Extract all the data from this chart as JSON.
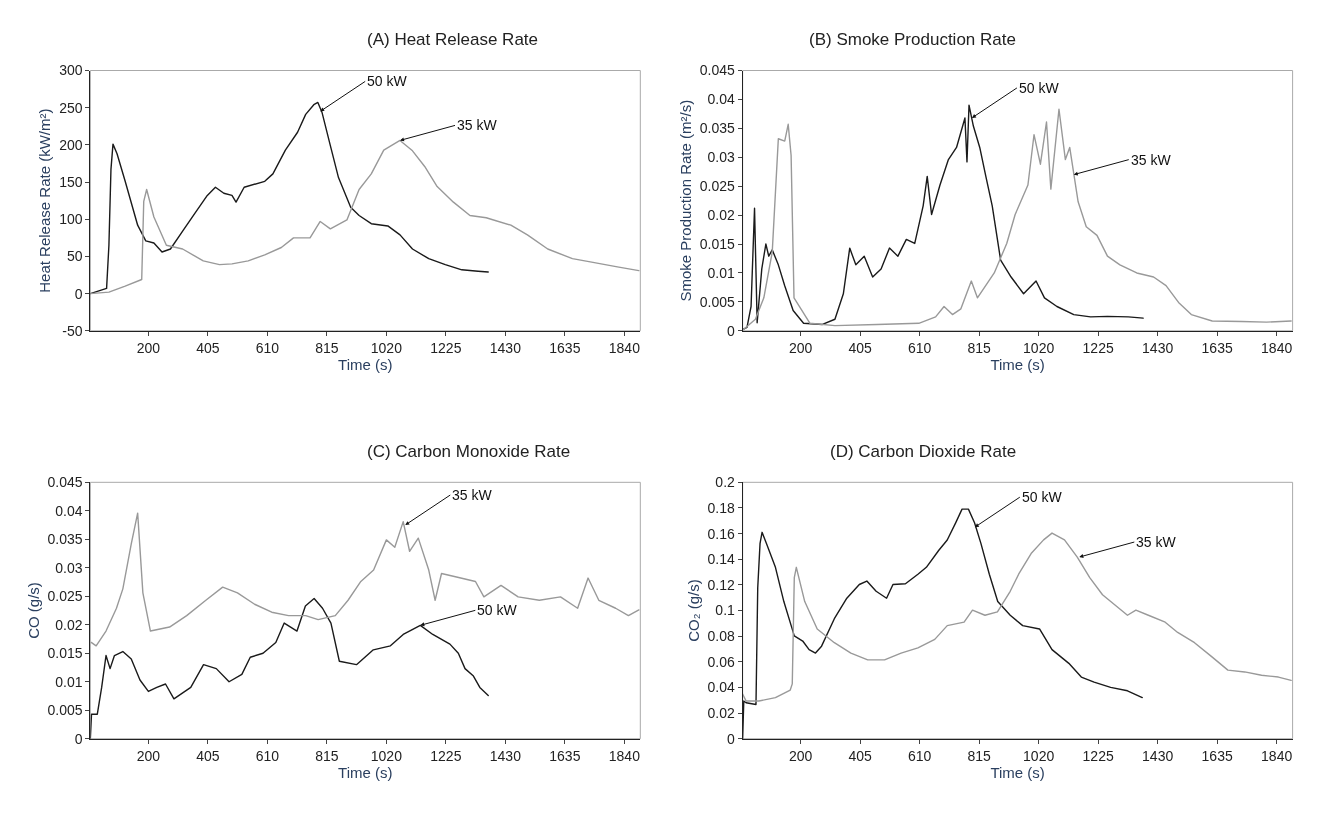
{
  "chart_data": [
    {
      "type": "line",
      "title": "(A) Heat Release Rate",
      "xlabel": "Time (s)",
      "ylabel": "Heat Release Rate (kW/m²)",
      "xlim": [
        0,
        1895
      ],
      "xticks": [
        200,
        405,
        610,
        815,
        1020,
        1225,
        1430,
        1635,
        1840
      ],
      "ylim": [
        -50,
        300
      ],
      "yticks": [
        -50,
        0,
        50,
        100,
        150,
        200,
        250,
        300
      ],
      "grid": false,
      "marker": "none",
      "line_style": "solid",
      "series": [
        {
          "color": "#1a1a1a",
          "x": [
            0,
            56,
            64,
            71,
            78,
            92,
            120,
            163,
            191,
            219,
            247,
            276,
            318,
            360,
            403,
            431,
            460,
            488,
            502,
            530,
            601,
            629,
            672,
            714,
            742,
            770,
            784,
            798,
            827,
            855,
            897,
            926,
            968,
            1025,
            1067,
            1110,
            1166,
            1223,
            1280,
            1336,
            1371
          ],
          "values": [
            0,
            7,
            65,
            167,
            201,
            188,
            151,
            92,
            71,
            68,
            56,
            60,
            84,
            108,
            132,
            143,
            135,
            132,
            123,
            143,
            151,
            161,
            193,
            217,
            241,
            254,
            257,
            244,
            199,
            156,
            116,
            105,
            94,
            91,
            79,
            60,
            47,
            39,
            32,
            30,
            29
          ]
        },
        {
          "color": "#999999",
          "x": [
            0,
            64,
            120,
            177,
            184,
            194,
            219,
            262,
            318,
            389,
            445,
            488,
            544,
            601,
            658,
            700,
            757,
            792,
            827,
            884,
            926,
            968,
            1011,
            1067,
            1110,
            1152,
            1195,
            1251,
            1308,
            1364,
            1449,
            1506,
            1576,
            1661,
            1732,
            1816,
            1890
          ],
          "values": [
            0,
            2,
            10,
            19,
            124,
            140,
            103,
            65,
            60,
            44,
            39,
            40,
            44,
            52,
            62,
            75,
            75,
            97,
            87,
            99,
            140,
            161,
            193,
            206,
            192,
            171,
            144,
            123,
            105,
            102,
            92,
            79,
            60,
            47,
            42,
            36,
            31
          ]
        }
      ],
      "annotations": [
        {
          "text": "50 kW",
          "x": 792,
          "y": 245
        },
        {
          "text": "35 kW",
          "x": 1067,
          "y": 206
        }
      ]
    },
    {
      "type": "line",
      "title": "(B) Smoke Production Rate",
      "xlabel": "Time (s)",
      "ylabel": "Smoke Production Rate (m²/s)",
      "xlim": [
        0,
        1895
      ],
      "xticks": [
        200,
        405,
        610,
        815,
        1020,
        1225,
        1430,
        1635,
        1840
      ],
      "ylim": [
        0,
        0.045
      ],
      "yticks": [
        0,
        0.005,
        0.01,
        0.015,
        0.02,
        0.025,
        0.03,
        0.035,
        0.04,
        0.045
      ],
      "grid": false,
      "marker": "none",
      "line_style": "solid",
      "series": [
        {
          "color": "#1a1a1a",
          "x": [
            0,
            15,
            29,
            41,
            50,
            66,
            80,
            90,
            102,
            123,
            145,
            174,
            210,
            275,
            318,
            347,
            369,
            390,
            419,
            448,
            477,
            506,
            535,
            564,
            593,
            622,
            636,
            651,
            680,
            709,
            737,
            766,
            773,
            780,
            795,
            817,
            838,
            860,
            889,
            925,
            968,
            1011,
            1040,
            1083,
            1141,
            1199,
            1257,
            1329,
            1380
          ],
          "values": [
            0.0002,
            0.0006,
            0.0042,
            0.0212,
            0.0014,
            0.0107,
            0.015,
            0.0129,
            0.014,
            0.0114,
            0.0078,
            0.0035,
            0.0013,
            0.0011,
            0.002,
            0.0064,
            0.0143,
            0.0114,
            0.0129,
            0.0093,
            0.0107,
            0.0143,
            0.0129,
            0.0158,
            0.0151,
            0.0216,
            0.0267,
            0.0201,
            0.0252,
            0.0296,
            0.0317,
            0.0368,
            0.0292,
            0.039,
            0.0354,
            0.0317,
            0.0267,
            0.0216,
            0.0122,
            0.0093,
            0.0064,
            0.0086,
            0.0057,
            0.0042,
            0.0028,
            0.0024,
            0.0025,
            0.0024,
            0.0022
          ]
        },
        {
          "color": "#999999",
          "x": [
            0,
            44,
            73,
            102,
            123,
            145,
            157,
            167,
            177,
            196,
            232,
            318,
            463,
            607,
            665,
            694,
            723,
            752,
            788,
            809,
            867,
            910,
            939,
            983,
            1004,
            1026,
            1047,
            1062,
            1090,
            1112,
            1127,
            1156,
            1184,
            1221,
            1257,
            1300,
            1358,
            1416,
            1459,
            1502,
            1546,
            1618,
            1719,
            1805,
            1890
          ],
          "values": [
            0.0001,
            0.002,
            0.0057,
            0.0136,
            0.0332,
            0.0328,
            0.0357,
            0.0303,
            0.0057,
            0.0042,
            0.0013,
            0.0009,
            0.0011,
            0.0013,
            0.0024,
            0.0042,
            0.0028,
            0.0038,
            0.0086,
            0.0057,
            0.01,
            0.0151,
            0.0201,
            0.0252,
            0.0339,
            0.0288,
            0.0361,
            0.0245,
            0.0383,
            0.0296,
            0.0317,
            0.0223,
            0.018,
            0.0165,
            0.0129,
            0.0114,
            0.01,
            0.0093,
            0.0078,
            0.0049,
            0.0028,
            0.0017,
            0.0016,
            0.0015,
            0.0017
          ]
        }
      ],
      "annotations": [
        {
          "text": "50 kW",
          "x": 790,
          "y": 0.0368
        },
        {
          "text": "35 kW",
          "x": 1141,
          "y": 0.027
        }
      ]
    },
    {
      "type": "line",
      "title": "(C) Carbon Monoxide Rate",
      "xlabel": "Time (s)",
      "ylabel": "CO (g/s)",
      "xlim": [
        0,
        1895
      ],
      "xticks": [
        200,
        405,
        610,
        815,
        1020,
        1225,
        1430,
        1635,
        1840
      ],
      "ylim": [
        0,
        0.045
      ],
      "yticks": [
        0,
        0.005,
        0.01,
        0.015,
        0.02,
        0.025,
        0.03,
        0.035,
        0.04,
        0.045
      ],
      "grid": false,
      "marker": "none",
      "line_style": "solid",
      "series": [
        {
          "color": "#1a1a1a",
          "x": [
            0,
            4,
            24,
            39,
            54,
            68,
            83,
            112,
            141,
            171,
            200,
            229,
            259,
            288,
            346,
            390,
            434,
            478,
            522,
            551,
            595,
            639,
            668,
            712,
            741,
            771,
            800,
            829,
            858,
            917,
            975,
            1034,
            1078,
            1137,
            1180,
            1239,
            1268,
            1291,
            1320,
            1342,
            1371
          ],
          "values": [
            0,
            0.0043,
            0.0043,
            0.009,
            0.0146,
            0.0123,
            0.0146,
            0.0153,
            0.014,
            0.0103,
            0.0083,
            0.009,
            0.0096,
            0.007,
            0.009,
            0.013,
            0.0123,
            0.01,
            0.0113,
            0.0143,
            0.015,
            0.0169,
            0.0203,
            0.0189,
            0.0233,
            0.0246,
            0.0229,
            0.0203,
            0.0136,
            0.013,
            0.0156,
            0.0163,
            0.0183,
            0.0199,
            0.0183,
            0.0166,
            0.015,
            0.0123,
            0.011,
            0.009,
            0.0076
          ]
        },
        {
          "color": "#999999",
          "x": [
            3,
            20,
            54,
            90,
            112,
            141,
            163,
            181,
            207,
            273,
            332,
            398,
            456,
            507,
            566,
            625,
            683,
            742,
            785,
            844,
            888,
            932,
            976,
            1020,
            1049,
            1078,
            1100,
            1130,
            1166,
            1188,
            1210,
            1269,
            1327,
            1356,
            1415,
            1474,
            1547,
            1620,
            1679,
            1715,
            1752,
            1810,
            1854,
            1890
          ],
          "values": [
            0.0169,
            0.0163,
            0.0189,
            0.0229,
            0.0263,
            0.0342,
            0.0396,
            0.0256,
            0.0189,
            0.0196,
            0.0216,
            0.0243,
            0.0266,
            0.0256,
            0.0236,
            0.0222,
            0.0216,
            0.0216,
            0.0209,
            0.0216,
            0.0243,
            0.0276,
            0.0296,
            0.0349,
            0.0336,
            0.0381,
            0.0329,
            0.0352,
            0.0296,
            0.0243,
            0.029,
            0.0283,
            0.0276,
            0.0249,
            0.0269,
            0.0249,
            0.0243,
            0.0249,
            0.0229,
            0.0282,
            0.0243,
            0.0229,
            0.0216,
            0.0226
          ]
        }
      ],
      "annotations": [
        {
          "text": "35 kW",
          "x": 1085,
          "y": 0.0375
        },
        {
          "text": "50 kW",
          "x": 1137,
          "y": 0.0199
        }
      ]
    },
    {
      "type": "line",
      "title": "(D) Carbon Dioxide Rate",
      "xlabel": "Time (s)",
      "ylabel": "CO₂ (g/s)",
      "xlim": [
        0,
        1895
      ],
      "xticks": [
        200,
        405,
        610,
        815,
        1020,
        1225,
        1430,
        1635,
        1840
      ],
      "ylim": [
        0,
        0.2
      ],
      "yticks": [
        0,
        0.02,
        0.04,
        0.06,
        0.08,
        0.1,
        0.12,
        0.14,
        0.16,
        0.18,
        0.2
      ],
      "grid": false,
      "marker": "none",
      "line_style": "solid",
      "series": [
        {
          "color": "#1a1a1a",
          "x": [
            0,
            4,
            12,
            46,
            52,
            60,
            67,
            84,
            113,
            142,
            178,
            207,
            229,
            251,
            272,
            316,
            359,
            402,
            428,
            460,
            496,
            518,
            561,
            604,
            633,
            676,
            705,
            734,
            756,
            778,
            799,
            821,
            850,
            879,
            922,
            965,
            1023,
            1066,
            1124,
            1167,
            1211,
            1268,
            1326,
            1377
          ],
          "values": [
            0,
            0.0294,
            0.0281,
            0.0267,
            0.1176,
            0.1524,
            0.161,
            0.1511,
            0.1337,
            0.107,
            0.0802,
            0.0762,
            0.0695,
            0.0668,
            0.0722,
            0.0936,
            0.1096,
            0.1203,
            0.123,
            0.115,
            0.1096,
            0.1203,
            0.1209,
            0.1283,
            0.1337,
            0.147,
            0.155,
            0.1684,
            0.1791,
            0.1791,
            0.1684,
            0.1524,
            0.1283,
            0.107,
            0.0963,
            0.0882,
            0.0856,
            0.0695,
            0.0588,
            0.0481,
            0.0441,
            0.0401,
            0.0374,
            0.0321
          ]
        },
        {
          "color": "#999999",
          "x": [
            0,
            12,
            56,
            113,
            164,
            171,
            178,
            185,
            214,
            257,
            316,
            373,
            431,
            489,
            546,
            604,
            662,
            705,
            763,
            792,
            835,
            878,
            922,
            951,
            994,
            1037,
            1066,
            1109,
            1153,
            1196,
            1240,
            1283,
            1326,
            1355,
            1398,
            1456,
            1499,
            1557,
            1615,
            1672,
            1730,
            1788,
            1846,
            1890
          ],
          "values": [
            0.0348,
            0.0294,
            0.0294,
            0.0321,
            0.038,
            0.0428,
            0.1257,
            0.1337,
            0.107,
            0.0856,
            0.0749,
            0.0668,
            0.0615,
            0.0615,
            0.0668,
            0.0709,
            0.0775,
            0.0882,
            0.0909,
            0.1003,
            0.0963,
            0.099,
            0.115,
            0.1283,
            0.1444,
            0.1551,
            0.1604,
            0.1551,
            0.1417,
            0.1257,
            0.1123,
            0.1043,
            0.0963,
            0.1003,
            0.0963,
            0.0909,
            0.0829,
            0.0749,
            0.0642,
            0.0535,
            0.0521,
            0.0495,
            0.0481,
            0.0455
          ]
        }
      ],
      "annotations": [
        {
          "text": "50 kW",
          "x": 800,
          "y": 0.165
        },
        {
          "text": "35 kW",
          "x": 1160,
          "y": 0.1417
        }
      ]
    }
  ]
}
